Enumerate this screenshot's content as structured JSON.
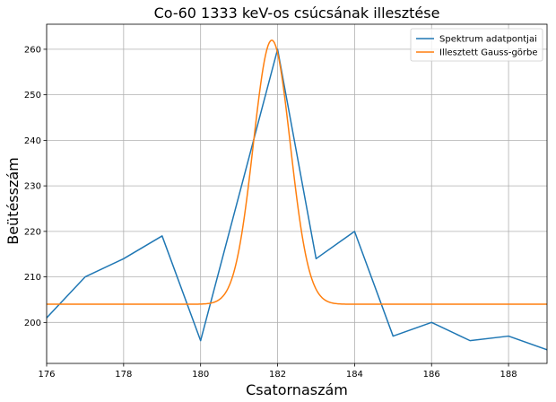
{
  "chart_data": {
    "type": "line",
    "title": "Co-60 1333 keV-os csúcsának illesztése",
    "xlabel": "Csatornaszám",
    "ylabel": "Beütésszám",
    "xlim": [
      176,
      189
    ],
    "ylim": [
      191,
      265.5
    ],
    "xticks": [
      176,
      178,
      180,
      182,
      184,
      186,
      188
    ],
    "yticks": [
      200,
      210,
      220,
      230,
      240,
      250,
      260
    ],
    "grid": true,
    "legend_position": "top-right",
    "series": [
      {
        "name": "Spektrum adatpontjai",
        "color": "#1f77b4",
        "x": [
          176,
          177,
          178,
          179,
          180,
          181,
          182,
          183,
          184,
          185,
          186,
          187,
          188,
          189
        ],
        "y": [
          201,
          210,
          214,
          219,
          196,
          228,
          260,
          214,
          220,
          197,
          200,
          196,
          197,
          194
        ]
      },
      {
        "name": "Illesztett Gauss-görbe",
        "color": "#ff7f0e",
        "model": "gaussian",
        "baseline": 204,
        "amplitude": 58,
        "center": 181.85,
        "sigma": 0.48
      }
    ]
  }
}
